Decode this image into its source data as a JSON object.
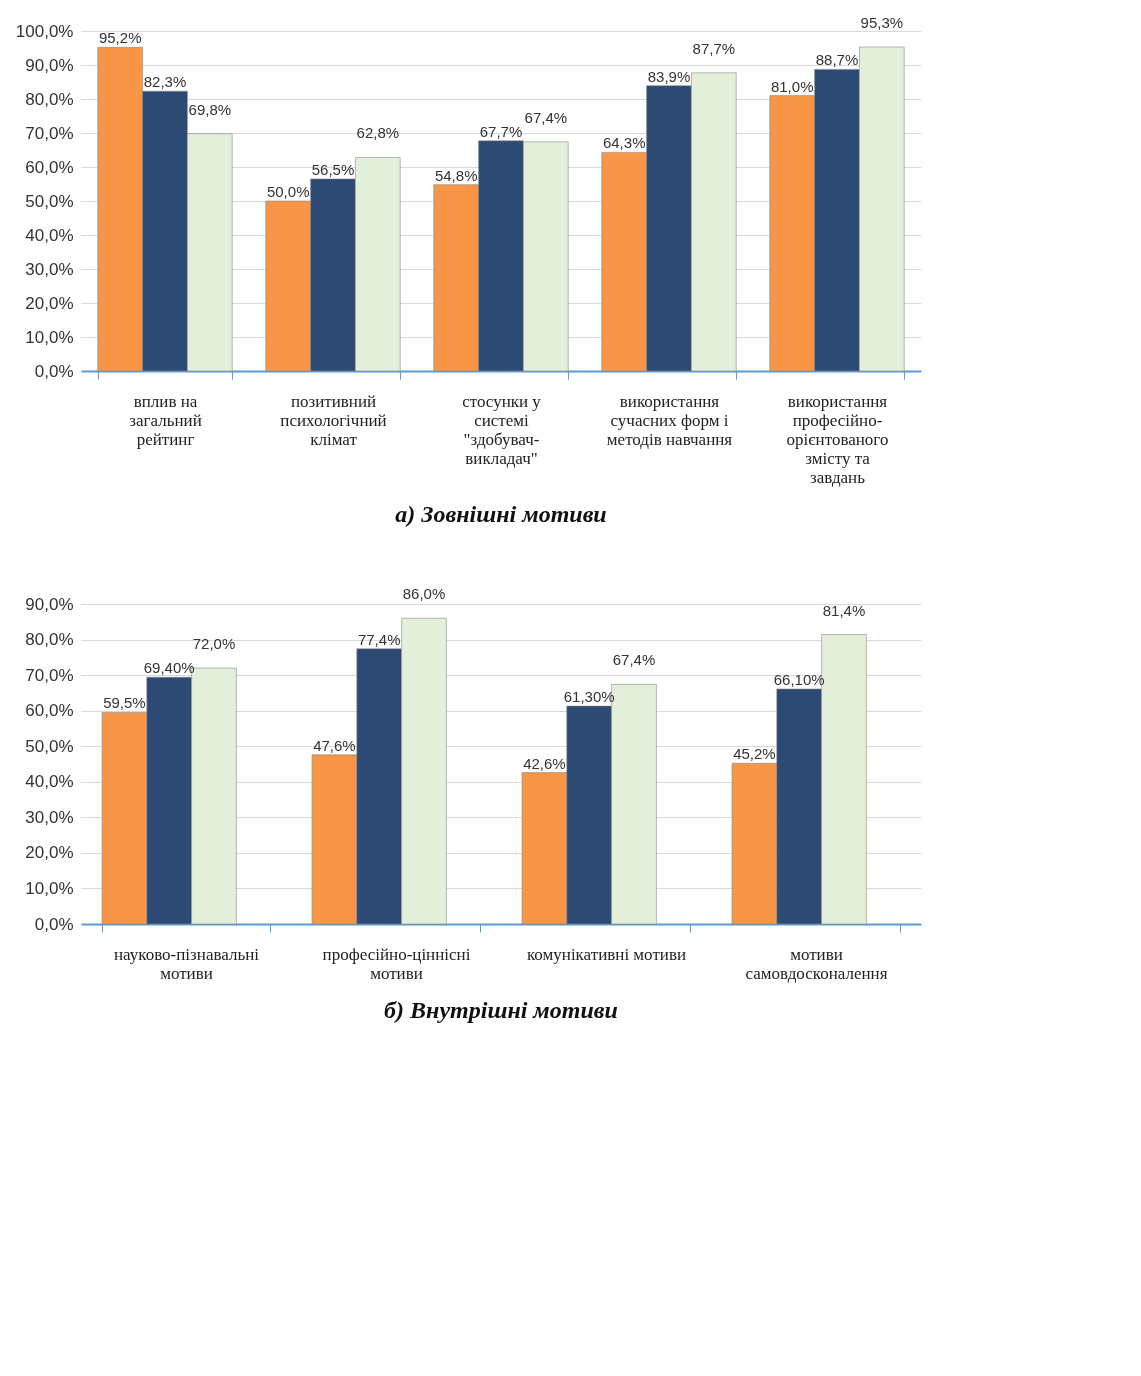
{
  "chart_data": [
    {
      "type": "bar",
      "title": "а) Зовнішні мотиви",
      "categories": [
        "вплив на загальний рейтинг",
        "позитивний психологічний клімат",
        "стосунки у системі \"здобувач-викладач\"",
        "використання сучасних форм і методів навчання",
        "використання професійно-орієнтованого змісту та завдань"
      ],
      "series": [
        {
          "color": "#f79646",
          "values": [
            95.2,
            50.0,
            54.8,
            64.3,
            81.0
          ],
          "value_labels": [
            "95,2%",
            "50,0%",
            "54,8%",
            "64,3%",
            "81,0%"
          ]
        },
        {
          "color": "#2c4a74",
          "values": [
            82.3,
            56.5,
            67.7,
            83.9,
            88.7
          ],
          "value_labels": [
            "82,3%",
            "56,5%",
            "67,7%",
            "83,9%",
            "88,7%"
          ]
        },
        {
          "color": "#e3efd9",
          "values": [
            69.8,
            62.8,
            67.4,
            87.7,
            95.3
          ],
          "value_labels": [
            "69,8%",
            "62,8%",
            "67,4%",
            "87,7%",
            "95,3%"
          ]
        }
      ],
      "ylim": [
        0,
        100
      ],
      "yticks": [
        {
          "value": 0,
          "label": "0,0%"
        },
        {
          "value": 10,
          "label": "10,0%"
        },
        {
          "value": 20,
          "label": "20,0%"
        },
        {
          "value": 30,
          "label": "30,0%"
        },
        {
          "value": 40,
          "label": "40,0%"
        },
        {
          "value": 50,
          "label": "50,0%"
        },
        {
          "value": 60,
          "label": "60,0%"
        },
        {
          "value": 70,
          "label": "70,0%"
        },
        {
          "value": 80,
          "label": "80,0%"
        },
        {
          "value": 90,
          "label": "90,0%"
        },
        {
          "value": 100,
          "label": "100,0%"
        }
      ],
      "grid": "y"
    },
    {
      "type": "bar",
      "title": "б) Внутрішні мотиви",
      "categories": [
        "науково-пізнавальні мотиви",
        "професійно-ціннісні мотиви",
        "комунікативні мотиви",
        "мотиви самовдосконалення"
      ],
      "series": [
        {
          "color": "#f79646",
          "values": [
            59.5,
            47.6,
            42.6,
            45.2
          ],
          "value_labels": [
            "59,5%",
            "47,6%",
            "42,6%",
            "45,2%"
          ]
        },
        {
          "color": "#2c4a74",
          "values": [
            69.4,
            77.4,
            61.3,
            66.1
          ],
          "value_labels": [
            "69,40%",
            "77,4%",
            "61,30%",
            "66,10%"
          ]
        },
        {
          "color": "#e3efd9",
          "values": [
            72.0,
            86.0,
            67.4,
            81.4
          ],
          "value_labels": [
            "72,0%",
            "86,0%",
            "67,4%",
            "81,4%"
          ]
        }
      ],
      "ylim": [
        0,
        90
      ],
      "yticks": [
        {
          "value": 0,
          "label": "0,0%"
        },
        {
          "value": 10,
          "label": "10,0%"
        },
        {
          "value": 20,
          "label": "20,0%"
        },
        {
          "value": 30,
          "label": "30,0%"
        },
        {
          "value": 40,
          "label": "40,0%"
        },
        {
          "value": 50,
          "label": "50,0%"
        },
        {
          "value": 60,
          "label": "60,0%"
        },
        {
          "value": 70,
          "label": "70,0%"
        },
        {
          "value": 80,
          "label": "80,0%"
        },
        {
          "value": 90,
          "label": "90,0%"
        }
      ],
      "grid": "y"
    }
  ]
}
